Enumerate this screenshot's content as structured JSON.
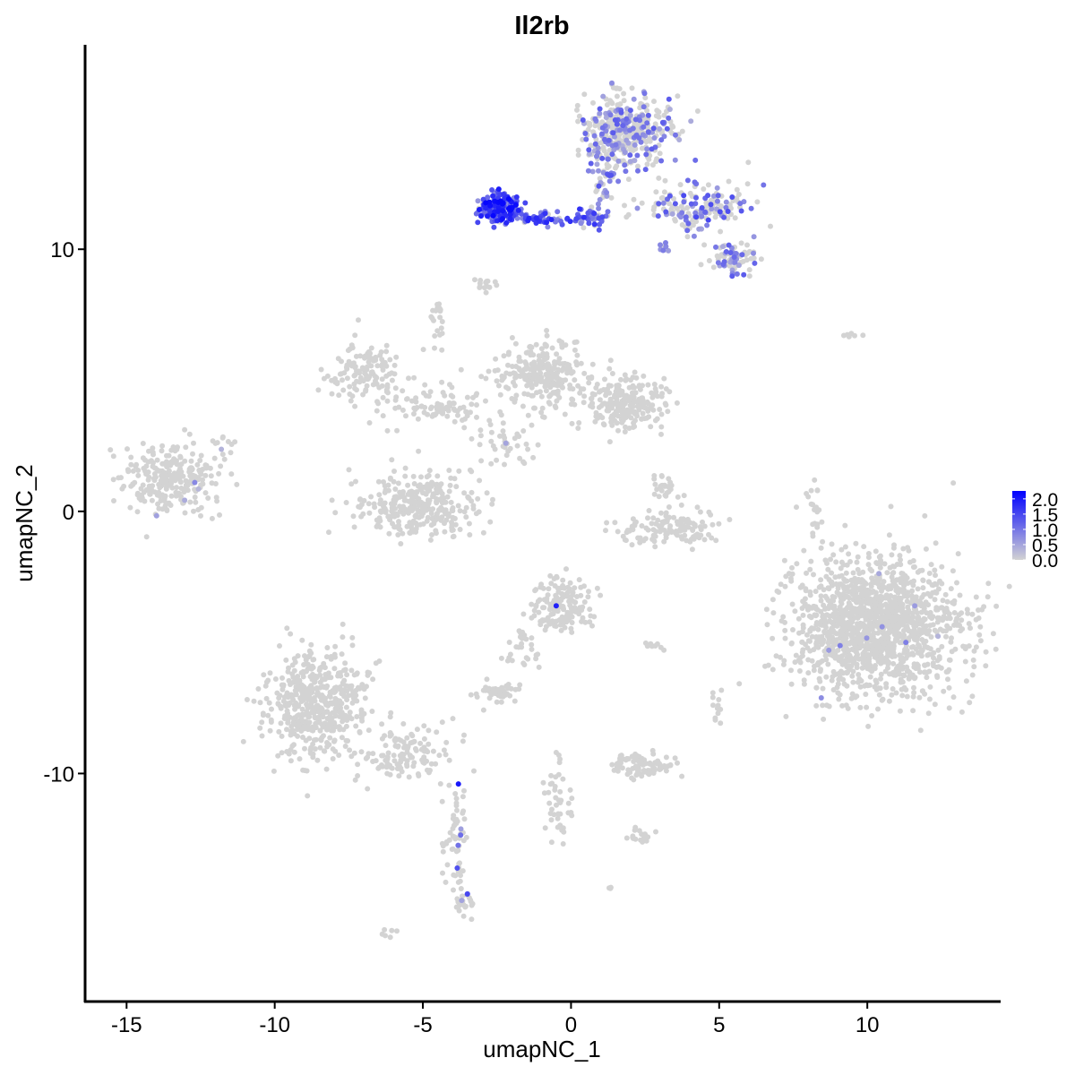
{
  "chart_data": {
    "type": "scatter",
    "title": "Il2rb",
    "xlabel": "umapNC_1",
    "ylabel": "umapNC_2",
    "xlim": [
      -16.4,
      14.5
    ],
    "ylim": [
      -18.7,
      17.8
    ],
    "x_ticks": [
      "-15",
      "-10",
      "-5",
      "0",
      "5",
      "10"
    ],
    "x_tick_values": [
      -15,
      -10,
      -5,
      0,
      5,
      10
    ],
    "y_ticks": [
      "-10",
      "0",
      "10"
    ],
    "y_tick_values": [
      -10,
      0,
      10
    ],
    "grid": false,
    "color_scale": {
      "low": "#D3D3D3",
      "high": "#0000FF",
      "min": 0,
      "max": 2.26
    },
    "legend": {
      "placement": "right",
      "labels": [
        "2.0",
        "1.5",
        "1.0",
        "0.5",
        "0.0"
      ],
      "values": [
        2.0,
        1.5,
        1.0,
        0.5,
        0.0
      ]
    },
    "clusters": [
      {
        "center": [
          -13.5,
          1.2
        ],
        "spread": [
          1.0,
          0.8
        ],
        "n": 260,
        "expr_frac": 0.01,
        "expr_max": 0.8
      },
      {
        "center": [
          -6.9,
          5.2
        ],
        "spread": [
          0.8,
          0.8
        ],
        "n": 130,
        "expr_frac": 0,
        "expr_max": 0
      },
      {
        "center": [
          -4.6,
          3.9
        ],
        "spread": [
          1.2,
          0.5
        ],
        "n": 90,
        "expr_frac": 0,
        "expr_max": 0
      },
      {
        "center": [
          -5.1,
          0.2
        ],
        "spread": [
          1.3,
          0.8
        ],
        "n": 320,
        "expr_frac": 0,
        "expr_max": 0
      },
      {
        "center": [
          -1.0,
          5.3
        ],
        "spread": [
          0.9,
          0.8
        ],
        "n": 260,
        "expr_frac": 0,
        "expr_max": 0
      },
      {
        "center": [
          1.7,
          4.1
        ],
        "spread": [
          0.9,
          0.6
        ],
        "n": 220,
        "expr_frac": 0,
        "expr_max": 0
      },
      {
        "center": [
          -2.3,
          2.6
        ],
        "spread": [
          0.7,
          0.6
        ],
        "n": 40,
        "expr_frac": 0.02,
        "expr_max": 0.6
      },
      {
        "center": [
          3.5,
          -0.6
        ],
        "spread": [
          1.1,
          0.4
        ],
        "n": 130,
        "expr_frac": 0,
        "expr_max": 0
      },
      {
        "center": [
          3.2,
          0.9
        ],
        "spread": [
          0.3,
          0.4
        ],
        "n": 25,
        "expr_frac": 0,
        "expr_max": 0
      },
      {
        "center": [
          10.3,
          -4.4
        ],
        "spread": [
          1.7,
          1.6
        ],
        "n": 1500,
        "expr_frac": 0.003,
        "expr_max": 0.9
      },
      {
        "center": [
          -0.3,
          -3.6
        ],
        "spread": [
          0.6,
          0.6
        ],
        "n": 160,
        "expr_frac": 0.01,
        "expr_max": 1.6
      },
      {
        "center": [
          -1.6,
          -5.2
        ],
        "spread": [
          0.4,
          0.6
        ],
        "n": 30,
        "expr_frac": 0,
        "expr_max": 0
      },
      {
        "center": [
          -8.6,
          -7.4
        ],
        "spread": [
          1.1,
          1.3
        ],
        "n": 520,
        "expr_frac": 0,
        "expr_max": 0
      },
      {
        "center": [
          -5.6,
          -9.3
        ],
        "spread": [
          1.0,
          0.6
        ],
        "n": 120,
        "expr_frac": 0,
        "expr_max": 0
      },
      {
        "center": [
          -3.9,
          -12.5
        ],
        "spread": [
          0.3,
          1.5
        ],
        "n": 70,
        "expr_frac": 0.03,
        "expr_max": 1.6
      },
      {
        "center": [
          -3.6,
          -14.9
        ],
        "spread": [
          0.2,
          0.3
        ],
        "n": 20,
        "expr_frac": 0.05,
        "expr_max": 1.2
      },
      {
        "center": [
          -2.5,
          -6.9
        ],
        "spread": [
          0.5,
          0.25
        ],
        "n": 45,
        "expr_frac": 0,
        "expr_max": 0
      },
      {
        "center": [
          2.4,
          -9.7
        ],
        "spread": [
          0.7,
          0.3
        ],
        "n": 90,
        "expr_frac": 0,
        "expr_max": 0
      },
      {
        "center": [
          -0.4,
          -11.0
        ],
        "spread": [
          0.3,
          1.1
        ],
        "n": 45,
        "expr_frac": 0,
        "expr_max": 0
      },
      {
        "center": [
          2.3,
          -12.4
        ],
        "spread": [
          0.3,
          0.2
        ],
        "n": 18,
        "expr_frac": 0,
        "expr_max": 0
      },
      {
        "center": [
          2.7,
          -5.1
        ],
        "spread": [
          0.3,
          0.1
        ],
        "n": 10,
        "expr_frac": 0,
        "expr_max": 0
      },
      {
        "center": [
          8.2,
          0.0
        ],
        "spread": [
          0.2,
          0.7
        ],
        "n": 22,
        "expr_frac": 0,
        "expr_max": 0
      },
      {
        "center": [
          4.9,
          -7.6
        ],
        "spread": [
          0.15,
          0.4
        ],
        "n": 12,
        "expr_frac": 0,
        "expr_max": 0
      },
      {
        "center": [
          -2.8,
          8.7
        ],
        "spread": [
          0.25,
          0.15
        ],
        "n": 14,
        "expr_frac": 0,
        "expr_max": 0
      },
      {
        "center": [
          -4.5,
          7.2
        ],
        "spread": [
          0.15,
          0.6
        ],
        "n": 20,
        "expr_frac": 0,
        "expr_max": 0
      },
      {
        "center": [
          -6.1,
          -16.1
        ],
        "spread": [
          0.15,
          0.1
        ],
        "n": 6,
        "expr_frac": 0,
        "expr_max": 0
      },
      {
        "center": [
          9.5,
          6.7
        ],
        "spread": [
          0.25,
          0.1
        ],
        "n": 6,
        "expr_frac": 0,
        "expr_max": 0
      },
      {
        "center": [
          1.3,
          -14.4
        ],
        "spread": [
          0.1,
          0.1
        ],
        "n": 3,
        "expr_frac": 0,
        "expr_max": 0
      },
      {
        "center": [
          -11.7,
          2.6
        ],
        "spread": [
          0.3,
          0.3
        ],
        "n": 10,
        "expr_frac": 0.1,
        "expr_max": 0.8
      },
      {
        "center": [
          1.9,
          14.5
        ],
        "spread": [
          0.9,
          0.8
        ],
        "n": 420,
        "expr_frac": 0.3,
        "expr_max": 1.3
      },
      {
        "center": [
          4.3,
          11.6
        ],
        "spread": [
          1.1,
          0.5
        ],
        "n": 160,
        "expr_frac": 0.4,
        "expr_max": 1.5
      },
      {
        "center": [
          5.4,
          9.7
        ],
        "spread": [
          0.5,
          0.4
        ],
        "n": 80,
        "expr_frac": 0.35,
        "expr_max": 1.3
      },
      {
        "center": [
          3.1,
          10.1
        ],
        "spread": [
          0.2,
          0.15
        ],
        "n": 8,
        "expr_frac": 0.8,
        "expr_max": 1.1
      },
      {
        "center": [
          1.1,
          12.6
        ],
        "spread": [
          0.25,
          0.6
        ],
        "n": 40,
        "expr_frac": 0.6,
        "expr_max": 1.4
      },
      {
        "center": [
          -2.4,
          11.6
        ],
        "spread": [
          0.4,
          0.35
        ],
        "n": 180,
        "expr_frac": 0.95,
        "expr_max": 2.2
      },
      {
        "center": [
          -0.9,
          11.2
        ],
        "spread": [
          0.7,
          0.15
        ],
        "n": 50,
        "expr_frac": 0.9,
        "expr_max": 1.9
      },
      {
        "center": [
          0.8,
          11.2
        ],
        "spread": [
          0.35,
          0.25
        ],
        "n": 40,
        "expr_frac": 0.85,
        "expr_max": 1.8
      }
    ],
    "highlighted_points": [
      [
        -0.5,
        -3.6,
        1.9
      ],
      [
        -3.8,
        -10.4,
        2.0
      ],
      [
        -3.5,
        -14.6,
        1.5
      ],
      [
        10.5,
        -4.4,
        0.7
      ],
      [
        11.3,
        -5.0,
        0.9
      ],
      [
        11.6,
        -3.6,
        0.6
      ],
      [
        8.7,
        -5.3,
        0.6
      ],
      [
        -12.7,
        1.1,
        0.8
      ],
      [
        -2.2,
        2.6,
        0.5
      ]
    ]
  }
}
